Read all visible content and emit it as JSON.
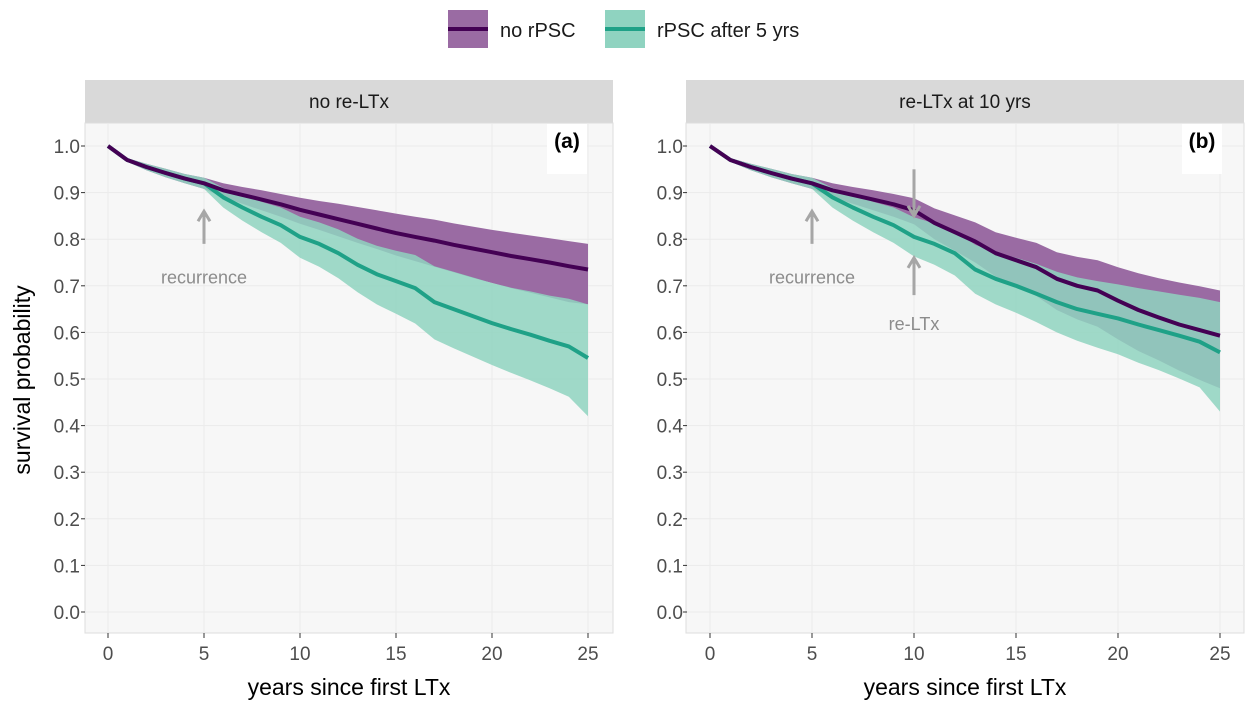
{
  "legend": {
    "position": "top-center",
    "items": [
      {
        "label": "no rPSC",
        "color": "#440154",
        "fill": "#9a6ba3"
      },
      {
        "label": "rPSC after 5 yrs",
        "color": "#1fa187",
        "fill": "#8fd3c0"
      }
    ]
  },
  "colors": {
    "panel_strip": "#d9d9d9",
    "panel_background": "#f7f7f7",
    "grid": "#ebebeb",
    "annotation": "#a6a6a6",
    "no_rpsc_line": "#440154",
    "rpsc_line": "#1fa187"
  },
  "chart_data": [
    {
      "type": "line",
      "strip_title": "no re-LTx",
      "panel_tag": "(a)",
      "xlabel": "years since first LTx",
      "ylabel": "survival probability",
      "xlim": [
        0,
        25
      ],
      "ylim": [
        0,
        1
      ],
      "xticks": [
        "0",
        "5",
        "10",
        "15",
        "20",
        "25"
      ],
      "yticks": [
        "0.0",
        "0.1",
        "0.2",
        "0.3",
        "0.4",
        "0.5",
        "0.6",
        "0.7",
        "0.8",
        "0.9",
        "1.0"
      ],
      "grid": true,
      "annotations": [
        {
          "label": "recurrence",
          "x": 5,
          "arrow": "up",
          "y_tip": 0.86,
          "y_tail": 0.79,
          "y_text": 0.72
        }
      ],
      "series": [
        {
          "name": "no rPSC",
          "color": "#440154",
          "ribbon": "#9a6ba3",
          "x": [
            0,
            1,
            2,
            3,
            4,
            5,
            6,
            7,
            8,
            9,
            10,
            11,
            12,
            13,
            14,
            15,
            16,
            17,
            18,
            19,
            20,
            21,
            22,
            23,
            24,
            25
          ],
          "y": [
            1.0,
            0.97,
            0.955,
            0.942,
            0.93,
            0.92,
            0.905,
            0.895,
            0.885,
            0.875,
            0.863,
            0.853,
            0.843,
            0.833,
            0.823,
            0.813,
            0.805,
            0.797,
            0.788,
            0.78,
            0.772,
            0.764,
            0.757,
            0.75,
            0.742,
            0.735
          ],
          "lower": [
            1.0,
            0.966,
            0.948,
            0.933,
            0.92,
            0.908,
            0.89,
            0.876,
            0.862,
            0.848,
            0.833,
            0.82,
            0.806,
            0.792,
            0.779,
            0.765,
            0.753,
            0.741,
            0.729,
            0.717,
            0.706,
            0.695,
            0.685,
            0.675,
            0.665,
            0.66
          ],
          "upper": [
            1.0,
            0.974,
            0.962,
            0.951,
            0.94,
            0.932,
            0.92,
            0.912,
            0.905,
            0.897,
            0.889,
            0.882,
            0.876,
            0.869,
            0.862,
            0.855,
            0.848,
            0.842,
            0.834,
            0.827,
            0.82,
            0.814,
            0.808,
            0.802,
            0.796,
            0.79
          ]
        },
        {
          "name": "rPSC after 5 yrs",
          "color": "#1fa187",
          "ribbon": "#8fd3c0",
          "x": [
            0,
            1,
            2,
            3,
            4,
            5,
            6,
            7,
            8,
            9,
            10,
            11,
            12,
            13,
            14,
            15,
            16,
            17,
            18,
            19,
            20,
            21,
            22,
            23,
            24,
            25
          ],
          "y": [
            1.0,
            0.97,
            0.955,
            0.942,
            0.93,
            0.92,
            0.89,
            0.868,
            0.848,
            0.83,
            0.805,
            0.79,
            0.77,
            0.745,
            0.725,
            0.71,
            0.695,
            0.665,
            0.65,
            0.635,
            0.62,
            0.607,
            0.595,
            0.582,
            0.57,
            0.545
          ],
          "lower": [
            1.0,
            0.966,
            0.948,
            0.933,
            0.92,
            0.908,
            0.868,
            0.84,
            0.815,
            0.792,
            0.76,
            0.741,
            0.716,
            0.686,
            0.66,
            0.64,
            0.619,
            0.585,
            0.566,
            0.548,
            0.53,
            0.513,
            0.497,
            0.48,
            0.462,
            0.42
          ],
          "upper": [
            1.0,
            0.974,
            0.962,
            0.951,
            0.94,
            0.932,
            0.91,
            0.896,
            0.88,
            0.868,
            0.848,
            0.836,
            0.821,
            0.801,
            0.786,
            0.775,
            0.766,
            0.742,
            0.73,
            0.718,
            0.706,
            0.696,
            0.688,
            0.679,
            0.672,
            0.66
          ]
        }
      ]
    },
    {
      "type": "line",
      "strip_title": "re-LTx at 10 yrs",
      "panel_tag": "(b)",
      "xlabel": "years since first LTx",
      "ylabel": "",
      "xlim": [
        0,
        25
      ],
      "ylim": [
        0,
        1
      ],
      "xticks": [
        "0",
        "5",
        "10",
        "15",
        "20",
        "25"
      ],
      "yticks": [
        "0.0",
        "0.1",
        "0.2",
        "0.3",
        "0.4",
        "0.5",
        "0.6",
        "0.7",
        "0.8",
        "0.9",
        "1.0"
      ],
      "grid": true,
      "annotations": [
        {
          "label": "recurrence",
          "x": 5,
          "arrow": "up",
          "y_tip": 0.86,
          "y_tail": 0.79,
          "y_text": 0.72
        },
        {
          "label": "re-LTx",
          "x": 10,
          "arrow": "down",
          "y_tip": 0.85,
          "y_tail": 0.95
        },
        {
          "label": "re-LTx",
          "x": 10,
          "arrow": "up",
          "y_tip": 0.76,
          "y_tail": 0.68,
          "y_text": 0.62
        }
      ],
      "series": [
        {
          "name": "no rPSC",
          "color": "#440154",
          "ribbon": "#9a6ba3",
          "x": [
            0,
            1,
            2,
            3,
            4,
            5,
            6,
            7,
            8,
            9,
            10,
            11,
            12,
            13,
            14,
            15,
            16,
            17,
            18,
            19,
            20,
            21,
            22,
            23,
            24,
            25
          ],
          "y": [
            1.0,
            0.97,
            0.955,
            0.942,
            0.93,
            0.92,
            0.905,
            0.895,
            0.885,
            0.875,
            0.862,
            0.835,
            0.815,
            0.795,
            0.77,
            0.755,
            0.74,
            0.715,
            0.7,
            0.69,
            0.668,
            0.648,
            0.632,
            0.617,
            0.605,
            0.593
          ],
          "lower": [
            1.0,
            0.966,
            0.948,
            0.933,
            0.92,
            0.908,
            0.89,
            0.876,
            0.862,
            0.848,
            0.832,
            0.8,
            0.775,
            0.75,
            0.72,
            0.7,
            0.678,
            0.648,
            0.628,
            0.612,
            0.585,
            0.56,
            0.54,
            0.518,
            0.498,
            0.48
          ],
          "upper": [
            1.0,
            0.974,
            0.962,
            0.951,
            0.94,
            0.932,
            0.92,
            0.912,
            0.905,
            0.897,
            0.888,
            0.866,
            0.851,
            0.836,
            0.815,
            0.803,
            0.792,
            0.772,
            0.762,
            0.755,
            0.74,
            0.727,
            0.716,
            0.707,
            0.699,
            0.69
          ]
        },
        {
          "name": "rPSC after 5 yrs",
          "color": "#1fa187",
          "ribbon": "#8fd3c0",
          "x": [
            0,
            1,
            2,
            3,
            4,
            5,
            6,
            7,
            8,
            9,
            10,
            11,
            12,
            13,
            14,
            15,
            16,
            17,
            18,
            19,
            20,
            21,
            22,
            23,
            24,
            25
          ],
          "y": [
            1.0,
            0.97,
            0.955,
            0.942,
            0.93,
            0.92,
            0.89,
            0.868,
            0.848,
            0.83,
            0.805,
            0.79,
            0.77,
            0.735,
            0.715,
            0.7,
            0.683,
            0.665,
            0.65,
            0.64,
            0.63,
            0.617,
            0.605,
            0.593,
            0.58,
            0.557
          ],
          "lower": [
            1.0,
            0.966,
            0.948,
            0.933,
            0.92,
            0.908,
            0.868,
            0.84,
            0.815,
            0.792,
            0.763,
            0.745,
            0.722,
            0.683,
            0.66,
            0.642,
            0.622,
            0.6,
            0.582,
            0.567,
            0.553,
            0.535,
            0.519,
            0.501,
            0.482,
            0.43
          ],
          "upper": [
            1.0,
            0.974,
            0.962,
            0.951,
            0.94,
            0.932,
            0.91,
            0.896,
            0.88,
            0.868,
            0.847,
            0.834,
            0.818,
            0.788,
            0.772,
            0.76,
            0.747,
            0.73,
            0.718,
            0.71,
            0.703,
            0.695,
            0.688,
            0.681,
            0.674,
            0.665
          ]
        }
      ]
    }
  ]
}
